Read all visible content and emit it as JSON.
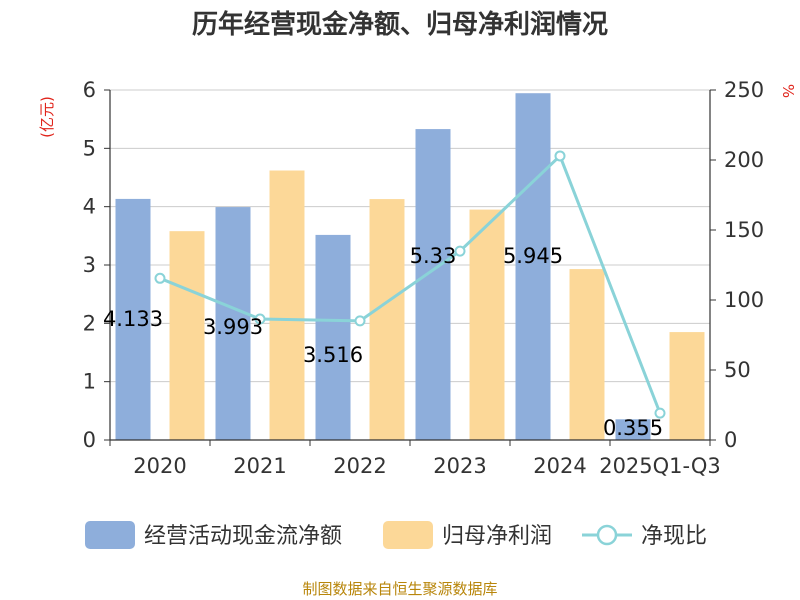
{
  "chart_data": {
    "type": "bar",
    "title": "历年经营现金净额、归母净利润情况",
    "left_axis_unit": "(亿元)",
    "right_axis_unit": "%",
    "categories": [
      "2020",
      "2021",
      "2022",
      "2023",
      "2024",
      "2025Q1-Q3"
    ],
    "left_ylim": [
      0,
      6
    ],
    "left_ticks": [
      "0",
      "1",
      "2",
      "3",
      "4",
      "5",
      "6"
    ],
    "right_ylim": [
      0,
      250
    ],
    "right_ticks": [
      "0",
      "50",
      "100",
      "150",
      "200",
      "250"
    ],
    "grid": true,
    "legend_position": "bottom",
    "series": [
      {
        "name": "经营活动现金流净额",
        "type": "bar",
        "axis": "left",
        "color": "#8eaedb",
        "values": [
          4.133,
          3.993,
          3.516,
          5.33,
          5.945,
          0.355
        ],
        "labels": [
          "4.133",
          "3.993",
          "3.516",
          "5.33",
          "5.945",
          "0.355"
        ]
      },
      {
        "name": "归母净利润",
        "type": "bar",
        "axis": "left",
        "color": "#fcd898",
        "values": [
          3.58,
          4.62,
          4.13,
          3.95,
          2.93,
          1.85
        ]
      },
      {
        "name": "净现比",
        "type": "line",
        "axis": "right",
        "color": "#8ad3d8",
        "values": [
          115.5,
          86.4,
          85.1,
          134.9,
          202.9,
          19.2
        ]
      }
    ],
    "source": "制图数据来自恒生聚源数据库"
  }
}
